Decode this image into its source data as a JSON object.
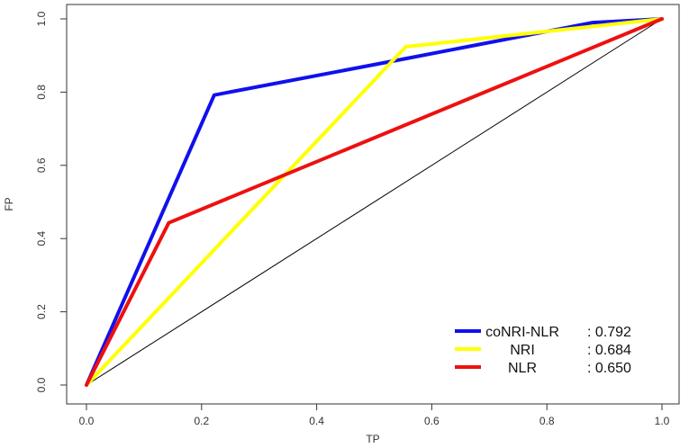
{
  "chart_data": {
    "type": "line",
    "xlabel": "TP",
    "ylabel": "FP",
    "xlim": [
      0,
      1
    ],
    "ylim": [
      0,
      1
    ],
    "xticks": [
      "0.0",
      "0.2",
      "0.4",
      "0.6",
      "0.8",
      "1.0"
    ],
    "yticks": [
      "0.0",
      "0.2",
      "0.4",
      "0.6",
      "0.8",
      "1.0"
    ],
    "grid": false,
    "legend_position": "bottom-right",
    "reference_line": {
      "x": [
        0,
        1
      ],
      "y": [
        0,
        1
      ],
      "color": "#000000"
    },
    "series": [
      {
        "legend_label": "coNRI-NLR",
        "legend_value": ": 0.792",
        "color": "#1010ee",
        "x": [
          0,
          0.222,
          0.55,
          0.88,
          1.0
        ],
        "y": [
          0,
          0.792,
          0.89,
          0.99,
          1.0
        ]
      },
      {
        "legend_label": "NRI",
        "legend_value": ": 0.684",
        "color": "#ffff00",
        "x": [
          0,
          0.555,
          1.0
        ],
        "y": [
          0,
          0.924,
          1.0
        ]
      },
      {
        "legend_label": "NLR",
        "legend_value": ": 0.650",
        "color": "#ee1010",
        "x": [
          0,
          0.143,
          1.0
        ],
        "y": [
          0,
          0.443,
          1.0
        ]
      }
    ]
  }
}
